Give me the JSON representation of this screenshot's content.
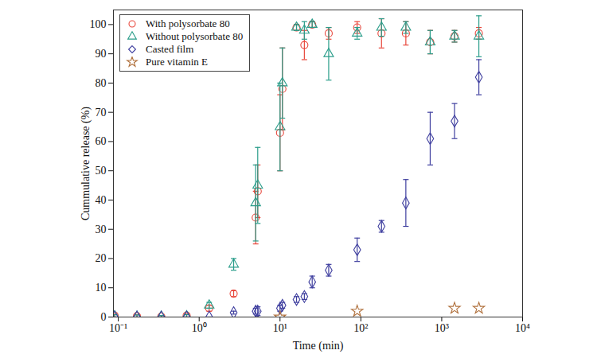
{
  "chart_data": {
    "type": "scatter",
    "x_label": "Time (min)",
    "y_label": "Cummulative release (%)",
    "log": "x",
    "grid": false,
    "legend": "top-left",
    "xlim": [
      0.087,
      10000
    ],
    "ylim": [
      0,
      105
    ],
    "xticks": [
      {
        "value": 0.1,
        "label": "10⁻¹"
      },
      {
        "value": 1,
        "label": "10⁰"
      },
      {
        "value": 10,
        "label": "10¹"
      },
      {
        "value": 100,
        "label": "10²"
      },
      {
        "value": 1000,
        "label": "10³"
      },
      {
        "value": 10000,
        "label": "10⁴"
      }
    ],
    "yticks": [
      0,
      10,
      20,
      30,
      40,
      50,
      60,
      70,
      80,
      90,
      100
    ],
    "series": [
      {
        "name": "With polysorbate 80",
        "color": "#e8473c",
        "marker": "circle",
        "x": [
          0.09,
          0.17,
          0.34,
          0.7,
          1.33,
          2.67,
          5,
          5.3,
          10,
          10.7,
          16,
          20,
          25,
          40,
          90,
          180,
          360,
          720,
          1440,
          2880
        ],
        "values": [
          0.5,
          0.3,
          0.2,
          0.5,
          3,
          8,
          34,
          43,
          63,
          78,
          99,
          93,
          100,
          97,
          99,
          97,
          97,
          94,
          96,
          97
        ],
        "errors": [
          0.5,
          0.5,
          0.3,
          0.5,
          1,
          1,
          9,
          9,
          13,
          14,
          1,
          5,
          1,
          2,
          2,
          5,
          4,
          4,
          2,
          2
        ]
      },
      {
        "name": "Without polysorbate 80",
        "color": "#2a9d8a",
        "marker": "triangle",
        "x": [
          0.09,
          0.17,
          0.34,
          0.7,
          1.33,
          2.67,
          5,
          5.3,
          10,
          10.7,
          16,
          20,
          25,
          40,
          90,
          180,
          360,
          720,
          1440,
          2880
        ],
        "values": [
          0.3,
          0.2,
          0.2,
          0.3,
          4,
          18,
          39,
          45,
          65,
          80,
          99,
          98,
          100,
          90,
          97,
          99,
          99,
          94,
          96,
          96
        ],
        "errors": [
          0.5,
          0.5,
          0.3,
          0.5,
          1,
          2,
          13,
          13,
          15,
          12,
          1,
          3,
          1,
          9,
          2,
          3,
          2,
          4,
          2,
          7
        ]
      },
      {
        "name": "Casted film",
        "color": "#3f3f9f",
        "marker": "diamond",
        "x": [
          0.09,
          0.17,
          0.34,
          0.7,
          1.33,
          2.67,
          5,
          5.3,
          10,
          10.7,
          16,
          20,
          25,
          40,
          90,
          180,
          360,
          720,
          1440,
          2880
        ],
        "values": [
          0,
          0,
          0,
          0,
          0,
          1.5,
          2,
          2,
          3,
          4,
          6,
          7,
          12,
          16,
          23,
          31,
          39,
          61,
          67,
          82
        ],
        "errors": [
          0,
          0,
          0,
          0,
          0,
          0.5,
          1,
          1.5,
          1,
          1,
          1,
          1,
          2,
          2,
          4,
          2,
          8,
          9,
          6,
          6
        ]
      },
      {
        "name": "Pure vitamin E",
        "color": "#b0703c",
        "marker": "star",
        "x": [
          10,
          90,
          1440,
          2880
        ],
        "values": [
          0,
          2,
          3,
          3
        ]
      }
    ]
  }
}
